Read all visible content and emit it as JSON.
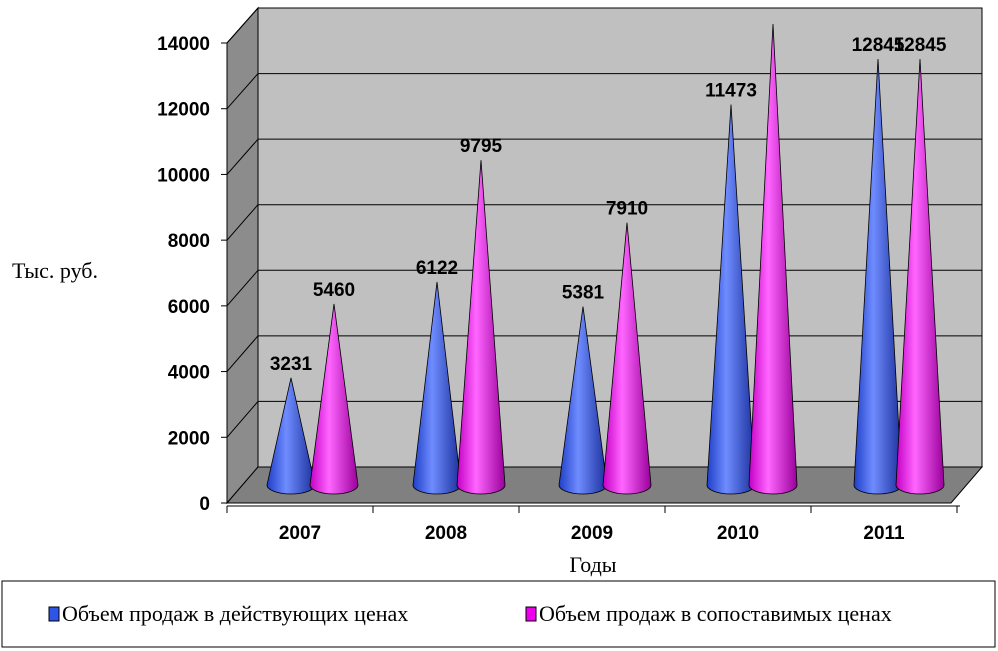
{
  "chart_data": {
    "type": "bar",
    "style": "3d-cone",
    "categories": [
      "2007",
      "2008",
      "2009",
      "2010",
      "2011"
    ],
    "series": [
      {
        "name": "Объем продаж в действующих ценах",
        "values": [
          3231,
          6122,
          5381,
          11473,
          12845
        ],
        "labels": [
          "3231",
          "6122",
          "5381",
          "11473",
          "12845"
        ],
        "color": "#2f55e8"
      },
      {
        "name": "Объем продаж в сопоставимых ценах",
        "values": [
          5460,
          9795,
          7910,
          13900,
          12845
        ],
        "labels": [
          "5460",
          "9795",
          "7910",
          "",
          "12845"
        ],
        "color": "#ee00ee"
      }
    ],
    "title": "",
    "xlabel": "Годы",
    "ylabel": "Тыс. руб.",
    "ylim": [
      0,
      14000
    ],
    "yticks": [
      0,
      2000,
      4000,
      6000,
      8000,
      10000,
      12000,
      14000
    ],
    "grid": true,
    "legend": "bottom",
    "colors": {
      "wall": "#c0c0c0",
      "floor": "#808080",
      "side_wall": "#8c8c8c"
    }
  }
}
